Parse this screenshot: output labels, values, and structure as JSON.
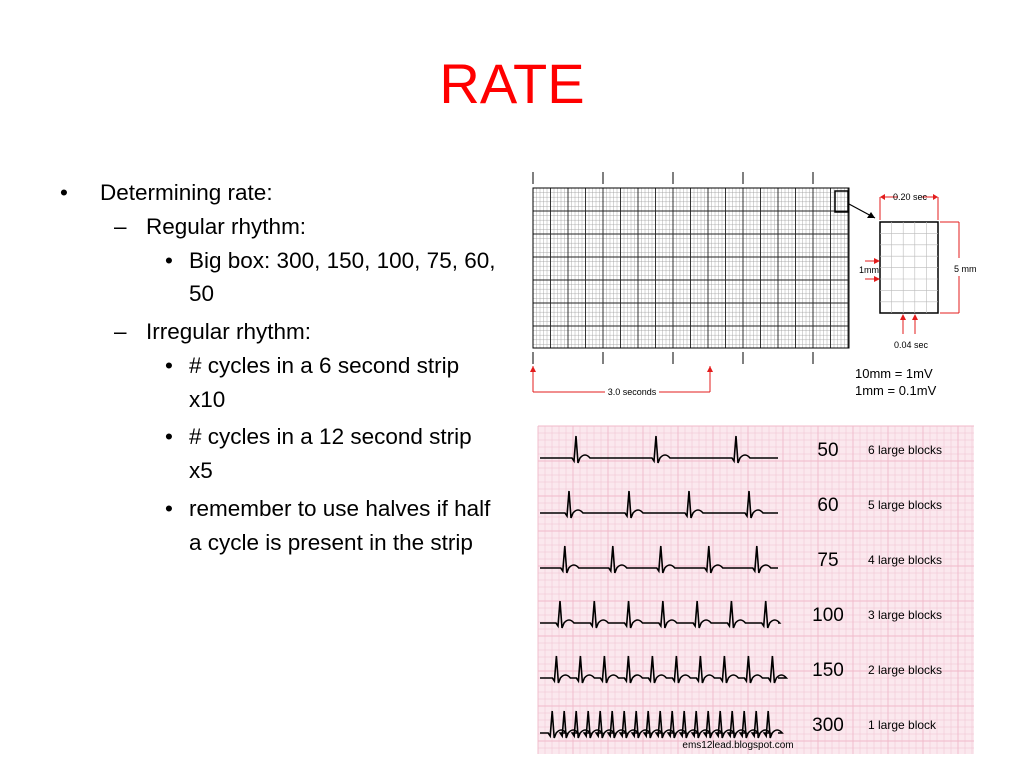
{
  "slide": {
    "title": "RATE",
    "bullets": {
      "b1": "Determining rate:",
      "regular": "Regular rhythm:",
      "bigbox": "Big box: 300, 150, 100, 75, 60, 50",
      "irregular": "Irregular rhythm:",
      "six": "# cycles in a 6 second strip x10",
      "twelve": "# cycles in a 12 second strip x5",
      "halves": "remember to use halves if half a cycle is present in the strip"
    },
    "markers": {
      "l1": "•",
      "l2": "–",
      "l3": "•"
    }
  },
  "grid_figure": {
    "box_top_label": "0.20 sec",
    "box_bottom_label": "0.04 sec",
    "left_label": "1mm",
    "right_label": "5 mm",
    "timing_label": "3.0 seconds",
    "voltage_line1": "10mm = 1mV",
    "voltage_line2": "1mm = 0.1mV"
  },
  "rate_strips": {
    "rows": [
      {
        "rate": "50",
        "blocks": "6 large blocks",
        "beats": 3
      },
      {
        "rate": "60",
        "blocks": "5 large blocks",
        "beats": 4
      },
      {
        "rate": "75",
        "blocks": "4 large blocks",
        "beats": 5
      },
      {
        "rate": "100",
        "blocks": "3 large blocks",
        "beats": 7
      },
      {
        "rate": "150",
        "blocks": "2 large blocks",
        "beats": 10
      },
      {
        "rate": "300",
        "blocks": "1 large block",
        "beats": 20
      }
    ],
    "credit": "ems12lead.blogspot.com",
    "colors": {
      "paper": "#fbe8ee",
      "grid": "#f0b9c9",
      "trace": "#000000"
    }
  }
}
